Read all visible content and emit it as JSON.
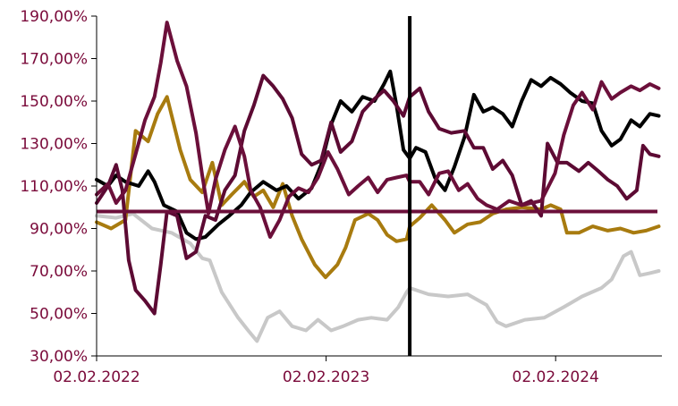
{
  "chart_data": {
    "type": "line",
    "title": "",
    "xlabel": "",
    "ylabel": "",
    "ylim": [
      30,
      190
    ],
    "y_ticks": [
      "190,00%",
      "170,00%",
      "150,00%",
      "130,00%",
      "110,00%",
      "90,00%",
      "70,00%",
      "50,00%",
      "30,00%"
    ],
    "y_tick_values": [
      190,
      170,
      150,
      130,
      110,
      90,
      70,
      50,
      30
    ],
    "x_ticks": [
      "02.02.2022",
      "02.02.2023",
      "02.02.2024"
    ],
    "x_tick_values": [
      "2022-02-02",
      "2023-02-02",
      "2024-02-02"
    ],
    "xlim": [
      "2022-02-02",
      "2024-07-20"
    ],
    "reference_line": {
      "value": 98,
      "color": "#6b0f3a"
    },
    "vertical_marker": {
      "date": "2023-06-15",
      "color": "#000000"
    },
    "grid": false,
    "series": [
      {
        "color": "#c8c8c8",
        "points": [
          [
            "2022-02-02",
            96
          ],
          [
            "2022-03-05",
            95
          ],
          [
            "2022-04-01",
            97
          ],
          [
            "2022-05-01",
            90
          ],
          [
            "2022-06-01",
            88
          ],
          [
            "2022-07-01",
            83
          ],
          [
            "2022-07-20",
            76
          ],
          [
            "2022-08-01",
            75
          ],
          [
            "2022-08-20",
            60
          ],
          [
            "2022-09-15",
            48
          ],
          [
            "2022-10-01",
            42
          ],
          [
            "2022-10-15",
            37
          ],
          [
            "2022-11-01",
            48
          ],
          [
            "2022-11-20",
            51
          ],
          [
            "2022-12-10",
            44
          ],
          [
            "2023-01-01",
            42
          ],
          [
            "2023-01-20",
            47
          ],
          [
            "2023-02-10",
            42
          ],
          [
            "2023-03-01",
            44
          ],
          [
            "2023-03-25",
            47
          ],
          [
            "2023-04-15",
            48
          ],
          [
            "2023-05-10",
            47
          ],
          [
            "2023-05-28",
            53
          ],
          [
            "2023-06-10",
            60
          ],
          [
            "2023-06-15",
            62
          ],
          [
            "2023-07-15",
            59
          ],
          [
            "2023-08-15",
            58
          ],
          [
            "2023-09-15",
            59
          ],
          [
            "2023-10-15",
            54
          ],
          [
            "2023-11-01",
            46
          ],
          [
            "2023-11-15",
            44
          ],
          [
            "2023-12-15",
            47
          ],
          [
            "2024-01-15",
            48
          ],
          [
            "2024-02-15",
            53
          ],
          [
            "2024-03-15",
            58
          ],
          [
            "2024-04-15",
            62
          ],
          [
            "2024-05-01",
            66
          ],
          [
            "2024-05-20",
            77
          ],
          [
            "2024-06-01",
            79
          ],
          [
            "2024-06-15",
            68
          ],
          [
            "2024-07-01",
            69
          ],
          [
            "2024-07-15",
            70
          ]
        ]
      },
      {
        "color": "#a87b0f",
        "points": [
          [
            "2022-02-02",
            93
          ],
          [
            "2022-02-25",
            90
          ],
          [
            "2022-03-20",
            94
          ],
          [
            "2022-04-05",
            136
          ],
          [
            "2022-04-25",
            131
          ],
          [
            "2022-05-10",
            144
          ],
          [
            "2022-05-25",
            152
          ],
          [
            "2022-06-15",
            127
          ],
          [
            "2022-07-01",
            113
          ],
          [
            "2022-07-20",
            107
          ],
          [
            "2022-08-05",
            121
          ],
          [
            "2022-08-20",
            101
          ],
          [
            "2022-09-05",
            106
          ],
          [
            "2022-09-25",
            112
          ],
          [
            "2022-10-10",
            105
          ],
          [
            "2022-10-25",
            108
          ],
          [
            "2022-11-10",
            100
          ],
          [
            "2022-11-25",
            111
          ],
          [
            "2022-12-10",
            96
          ],
          [
            "2022-12-25",
            85
          ],
          [
            "2023-01-15",
            73
          ],
          [
            "2023-02-01",
            67
          ],
          [
            "2023-02-20",
            73
          ],
          [
            "2023-03-05",
            81
          ],
          [
            "2023-03-20",
            94
          ],
          [
            "2023-04-10",
            97
          ],
          [
            "2023-04-25",
            94
          ],
          [
            "2023-05-10",
            87
          ],
          [
            "2023-05-25",
            84
          ],
          [
            "2023-06-10",
            85
          ],
          [
            "2023-06-15",
            91
          ],
          [
            "2023-07-01",
            95
          ],
          [
            "2023-07-20",
            101
          ],
          [
            "2023-08-10",
            94
          ],
          [
            "2023-08-25",
            88
          ],
          [
            "2023-09-15",
            92
          ],
          [
            "2023-10-05",
            93
          ],
          [
            "2023-10-25",
            97
          ],
          [
            "2023-11-15",
            99
          ],
          [
            "2023-12-10",
            100
          ],
          [
            "2024-01-10",
            99
          ],
          [
            "2024-01-25",
            101
          ],
          [
            "2024-02-10",
            99
          ],
          [
            "2024-02-20",
            88
          ],
          [
            "2024-03-10",
            88
          ],
          [
            "2024-04-01",
            91
          ],
          [
            "2024-04-25",
            89
          ],
          [
            "2024-05-15",
            90
          ],
          [
            "2024-06-05",
            88
          ],
          [
            "2024-06-25",
            89
          ],
          [
            "2024-07-15",
            91
          ]
        ]
      },
      {
        "color": "#000000",
        "points": [
          [
            "2022-02-02",
            113
          ],
          [
            "2022-02-20",
            110
          ],
          [
            "2022-03-05",
            115
          ],
          [
            "2022-03-20",
            112
          ],
          [
            "2022-04-10",
            110
          ],
          [
            "2022-04-25",
            117
          ],
          [
            "2022-05-05",
            112
          ],
          [
            "2022-05-20",
            101
          ],
          [
            "2022-06-10",
            98
          ],
          [
            "2022-06-25",
            88
          ],
          [
            "2022-07-10",
            85
          ],
          [
            "2022-07-25",
            86
          ],
          [
            "2022-08-15",
            92
          ],
          [
            "2022-09-01",
            96
          ],
          [
            "2022-09-20",
            101
          ],
          [
            "2022-10-05",
            107
          ],
          [
            "2022-10-25",
            112
          ],
          [
            "2022-11-15",
            108
          ],
          [
            "2022-12-01",
            110
          ],
          [
            "2022-12-20",
            104
          ],
          [
            "2023-01-10",
            109
          ],
          [
            "2023-01-25",
            120
          ],
          [
            "2023-02-10",
            139
          ],
          [
            "2023-02-25",
            150
          ],
          [
            "2023-03-15",
            145
          ],
          [
            "2023-04-01",
            152
          ],
          [
            "2023-04-20",
            150
          ],
          [
            "2023-05-05",
            158
          ],
          [
            "2023-05-15",
            164
          ],
          [
            "2023-05-25",
            148
          ],
          [
            "2023-06-05",
            127
          ],
          [
            "2023-06-15",
            123
          ],
          [
            "2023-06-25",
            128
          ],
          [
            "2023-07-10",
            126
          ],
          [
            "2023-07-25",
            114
          ],
          [
            "2023-08-10",
            108
          ],
          [
            "2023-08-25",
            119
          ],
          [
            "2023-09-10",
            133
          ],
          [
            "2023-09-25",
            153
          ],
          [
            "2023-10-10",
            145
          ],
          [
            "2023-10-25",
            147
          ],
          [
            "2023-11-10",
            144
          ],
          [
            "2023-11-25",
            138
          ],
          [
            "2023-12-10",
            150
          ],
          [
            "2023-12-25",
            160
          ],
          [
            "2024-01-10",
            157
          ],
          [
            "2024-01-25",
            161
          ],
          [
            "2024-02-10",
            158
          ],
          [
            "2024-02-25",
            154
          ],
          [
            "2024-03-15",
            150
          ],
          [
            "2024-04-01",
            149
          ],
          [
            "2024-04-15",
            136
          ],
          [
            "2024-05-01",
            129
          ],
          [
            "2024-05-15",
            132
          ],
          [
            "2024-06-01",
            141
          ],
          [
            "2024-06-15",
            138
          ],
          [
            "2024-07-01",
            144
          ],
          [
            "2024-07-15",
            143
          ]
        ]
      },
      {
        "color": "#5c0a33",
        "points": [
          [
            "2022-02-02",
            102
          ],
          [
            "2022-02-20",
            110
          ],
          [
            "2022-03-05",
            120
          ],
          [
            "2022-03-15",
            108
          ],
          [
            "2022-03-25",
            75
          ],
          [
            "2022-04-05",
            61
          ],
          [
            "2022-04-20",
            56
          ],
          [
            "2022-05-05",
            50
          ],
          [
            "2022-05-15",
            73
          ],
          [
            "2022-05-25",
            98
          ],
          [
            "2022-06-10",
            96
          ],
          [
            "2022-06-25",
            76
          ],
          [
            "2022-07-10",
            79
          ],
          [
            "2022-07-25",
            96
          ],
          [
            "2022-08-10",
            94
          ],
          [
            "2022-08-25",
            108
          ],
          [
            "2022-09-10",
            115
          ],
          [
            "2022-09-25",
            136
          ],
          [
            "2022-10-10",
            148
          ],
          [
            "2022-10-25",
            162
          ],
          [
            "2022-11-10",
            157
          ],
          [
            "2022-11-25",
            151
          ],
          [
            "2022-12-10",
            142
          ],
          [
            "2022-12-25",
            125
          ],
          [
            "2023-01-10",
            120
          ],
          [
            "2023-01-25",
            122
          ],
          [
            "2023-02-10",
            140
          ],
          [
            "2023-02-25",
            126
          ],
          [
            "2023-03-15",
            131
          ],
          [
            "2023-04-01",
            145
          ],
          [
            "2023-04-20",
            151
          ],
          [
            "2023-05-05",
            155
          ],
          [
            "2023-05-20",
            150
          ],
          [
            "2023-06-05",
            143
          ],
          [
            "2023-06-15",
            152
          ],
          [
            "2023-07-01",
            156
          ],
          [
            "2023-07-15",
            145
          ],
          [
            "2023-08-01",
            137
          ],
          [
            "2023-08-20",
            135
          ],
          [
            "2023-09-10",
            136
          ],
          [
            "2023-09-25",
            128
          ],
          [
            "2023-10-10",
            128
          ],
          [
            "2023-10-25",
            118
          ],
          [
            "2023-11-10",
            122
          ],
          [
            "2023-11-25",
            115
          ],
          [
            "2023-12-10",
            101
          ],
          [
            "2023-12-25",
            103
          ],
          [
            "2024-01-10",
            96
          ],
          [
            "2024-01-20",
            130
          ],
          [
            "2024-02-05",
            121
          ],
          [
            "2024-02-20",
            121
          ],
          [
            "2024-03-10",
            117
          ],
          [
            "2024-03-25",
            121
          ],
          [
            "2024-04-10",
            117
          ],
          [
            "2024-04-25",
            113
          ],
          [
            "2024-05-10",
            110
          ],
          [
            "2024-05-25",
            104
          ],
          [
            "2024-06-10",
            108
          ],
          [
            "2024-06-20",
            129
          ],
          [
            "2024-07-01",
            125
          ],
          [
            "2024-07-15",
            124
          ]
        ]
      },
      {
        "color": "#6b0f3a",
        "points": [
          [
            "2022-02-02",
            106
          ],
          [
            "2022-02-20",
            111
          ],
          [
            "2022-03-05",
            102
          ],
          [
            "2022-03-20",
            108
          ],
          [
            "2022-04-05",
            125
          ],
          [
            "2022-04-20",
            141
          ],
          [
            "2022-05-05",
            152
          ],
          [
            "2022-05-15",
            168
          ],
          [
            "2022-05-25",
            187
          ],
          [
            "2022-06-10",
            169
          ],
          [
            "2022-06-25",
            157
          ],
          [
            "2022-07-10",
            135
          ],
          [
            "2022-07-20",
            115
          ],
          [
            "2022-07-30",
            97
          ],
          [
            "2022-08-10",
            113
          ],
          [
            "2022-08-25",
            127
          ],
          [
            "2022-09-10",
            138
          ],
          [
            "2022-09-25",
            124
          ],
          [
            "2022-10-05",
            108
          ],
          [
            "2022-10-20",
            100
          ],
          [
            "2022-11-05",
            86
          ],
          [
            "2022-11-20",
            94
          ],
          [
            "2022-12-05",
            105
          ],
          [
            "2022-12-20",
            109
          ],
          [
            "2023-01-05",
            107
          ],
          [
            "2023-01-20",
            114
          ],
          [
            "2023-02-05",
            126
          ],
          [
            "2023-02-20",
            118
          ],
          [
            "2023-03-10",
            106
          ],
          [
            "2023-03-25",
            110
          ],
          [
            "2023-04-10",
            114
          ],
          [
            "2023-04-25",
            107
          ],
          [
            "2023-05-10",
            113
          ],
          [
            "2023-05-25",
            114
          ],
          [
            "2023-06-10",
            115
          ],
          [
            "2023-06-15",
            112
          ],
          [
            "2023-07-01",
            112
          ],
          [
            "2023-07-15",
            106
          ],
          [
            "2023-08-01",
            116
          ],
          [
            "2023-08-15",
            117
          ],
          [
            "2023-09-01",
            108
          ],
          [
            "2023-09-15",
            111
          ],
          [
            "2023-10-01",
            104
          ],
          [
            "2023-10-15",
            101
          ],
          [
            "2023-11-01",
            99
          ],
          [
            "2023-11-20",
            103
          ],
          [
            "2023-12-10",
            101
          ],
          [
            "2024-01-10",
            103
          ],
          [
            "2024-02-01",
            116
          ],
          [
            "2024-02-15",
            134
          ],
          [
            "2024-03-01",
            148
          ],
          [
            "2024-03-15",
            154
          ],
          [
            "2024-04-01",
            146
          ],
          [
            "2024-04-15",
            159
          ],
          [
            "2024-05-01",
            151
          ],
          [
            "2024-05-15",
            154
          ],
          [
            "2024-06-01",
            157
          ],
          [
            "2024-06-15",
            155
          ],
          [
            "2024-07-01",
            158
          ],
          [
            "2024-07-15",
            156
          ]
        ]
      }
    ]
  }
}
